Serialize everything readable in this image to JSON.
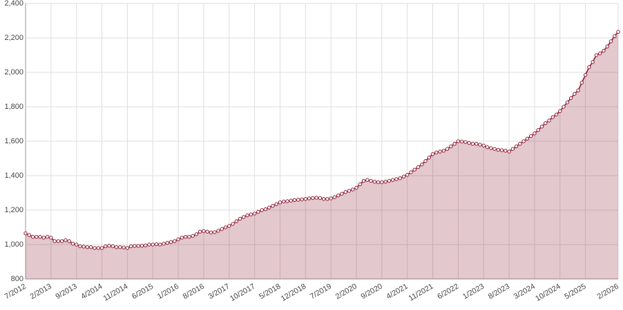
{
  "chart_data": {
    "type": "area",
    "categories": [
      "7/2012",
      null,
      null,
      null,
      null,
      null,
      null,
      "2/2013",
      null,
      null,
      null,
      null,
      null,
      null,
      "9/2013",
      null,
      null,
      null,
      null,
      null,
      null,
      "4/2014",
      null,
      null,
      null,
      null,
      null,
      null,
      "11/2014",
      null,
      null,
      null,
      null,
      null,
      null,
      "6/2015",
      null,
      null,
      null,
      null,
      null,
      null,
      "1/2016",
      null,
      null,
      null,
      null,
      null,
      null,
      "8/2016",
      null,
      null,
      null,
      null,
      null,
      null,
      "3/2017",
      null,
      null,
      null,
      null,
      null,
      null,
      "10/2017",
      null,
      null,
      null,
      null,
      null,
      null,
      "5/2018",
      null,
      null,
      null,
      null,
      null,
      null,
      "12/2018",
      null,
      null,
      null,
      null,
      null,
      null,
      "7/2019",
      null,
      null,
      null,
      null,
      null,
      null,
      "2/2020",
      null,
      null,
      null,
      null,
      null,
      null,
      "9/2020",
      null,
      null,
      null,
      null,
      null,
      null,
      "4/2021",
      null,
      null,
      null,
      null,
      null,
      null,
      "11/2021",
      null,
      null,
      null,
      null,
      null,
      null,
      "6/2022",
      null,
      null,
      null,
      null,
      null,
      null,
      "1/2023",
      null,
      null,
      null,
      null,
      null,
      null,
      "8/2023",
      null,
      null,
      null,
      null,
      null,
      null,
      "3/2024",
      null,
      null,
      null,
      null,
      null,
      null,
      "10/2024",
      null,
      null,
      null,
      null,
      null,
      null,
      "5/2025",
      null,
      null,
      null,
      null,
      null,
      null,
      null,
      null,
      "2/2026"
    ],
    "values": [
      1065,
      1055,
      1045,
      1045,
      1045,
      1040,
      1045,
      1040,
      1020,
      1020,
      1020,
      1025,
      1020,
      1005,
      1000,
      990,
      988,
      985,
      985,
      980,
      980,
      980,
      990,
      993,
      990,
      985,
      985,
      983,
      980,
      990,
      992,
      992,
      993,
      995,
      1000,
      1000,
      1002,
      1000,
      1005,
      1010,
      1015,
      1020,
      1030,
      1040,
      1045,
      1045,
      1050,
      1060,
      1075,
      1078,
      1075,
      1070,
      1072,
      1080,
      1090,
      1100,
      1108,
      1120,
      1135,
      1150,
      1160,
      1170,
      1175,
      1180,
      1190,
      1200,
      1205,
      1215,
      1225,
      1235,
      1245,
      1250,
      1252,
      1255,
      1258,
      1260,
      1262,
      1265,
      1268,
      1270,
      1272,
      1270,
      1265,
      1265,
      1268,
      1275,
      1285,
      1295,
      1305,
      1312,
      1320,
      1330,
      1350,
      1370,
      1375,
      1370,
      1365,
      1362,
      1362,
      1365,
      1370,
      1375,
      1380,
      1385,
      1395,
      1405,
      1420,
      1435,
      1450,
      1465,
      1485,
      1505,
      1525,
      1535,
      1540,
      1545,
      1555,
      1570,
      1585,
      1600,
      1598,
      1595,
      1590,
      1585,
      1585,
      1580,
      1575,
      1565,
      1560,
      1555,
      1550,
      1548,
      1545,
      1540,
      1555,
      1570,
      1585,
      1600,
      1615,
      1630,
      1645,
      1665,
      1685,
      1705,
      1720,
      1740,
      1755,
      1775,
      1800,
      1825,
      1850,
      1875,
      1895,
      1940,
      1985,
      2030,
      2060,
      2100,
      2110,
      2125,
      2150,
      2180,
      2210,
      2235
    ],
    "color": "#8b1a33",
    "ylim": [
      800,
      2400
    ],
    "yticks": [
      800,
      {
        "value": 1000,
        "label": "1,000"
      },
      {
        "value": 1200,
        "label": "1,200"
      },
      {
        "value": 1400,
        "label": "1,400"
      },
      {
        "value": 1600,
        "label": "1,600"
      },
      {
        "value": 1800,
        "label": "1,800"
      },
      {
        "value": 2000,
        "label": "2,000"
      },
      {
        "value": 2200,
        "label": "2,200"
      },
      {
        "value": 2400,
        "label": "2,400"
      }
    ],
    "grid": true
  }
}
